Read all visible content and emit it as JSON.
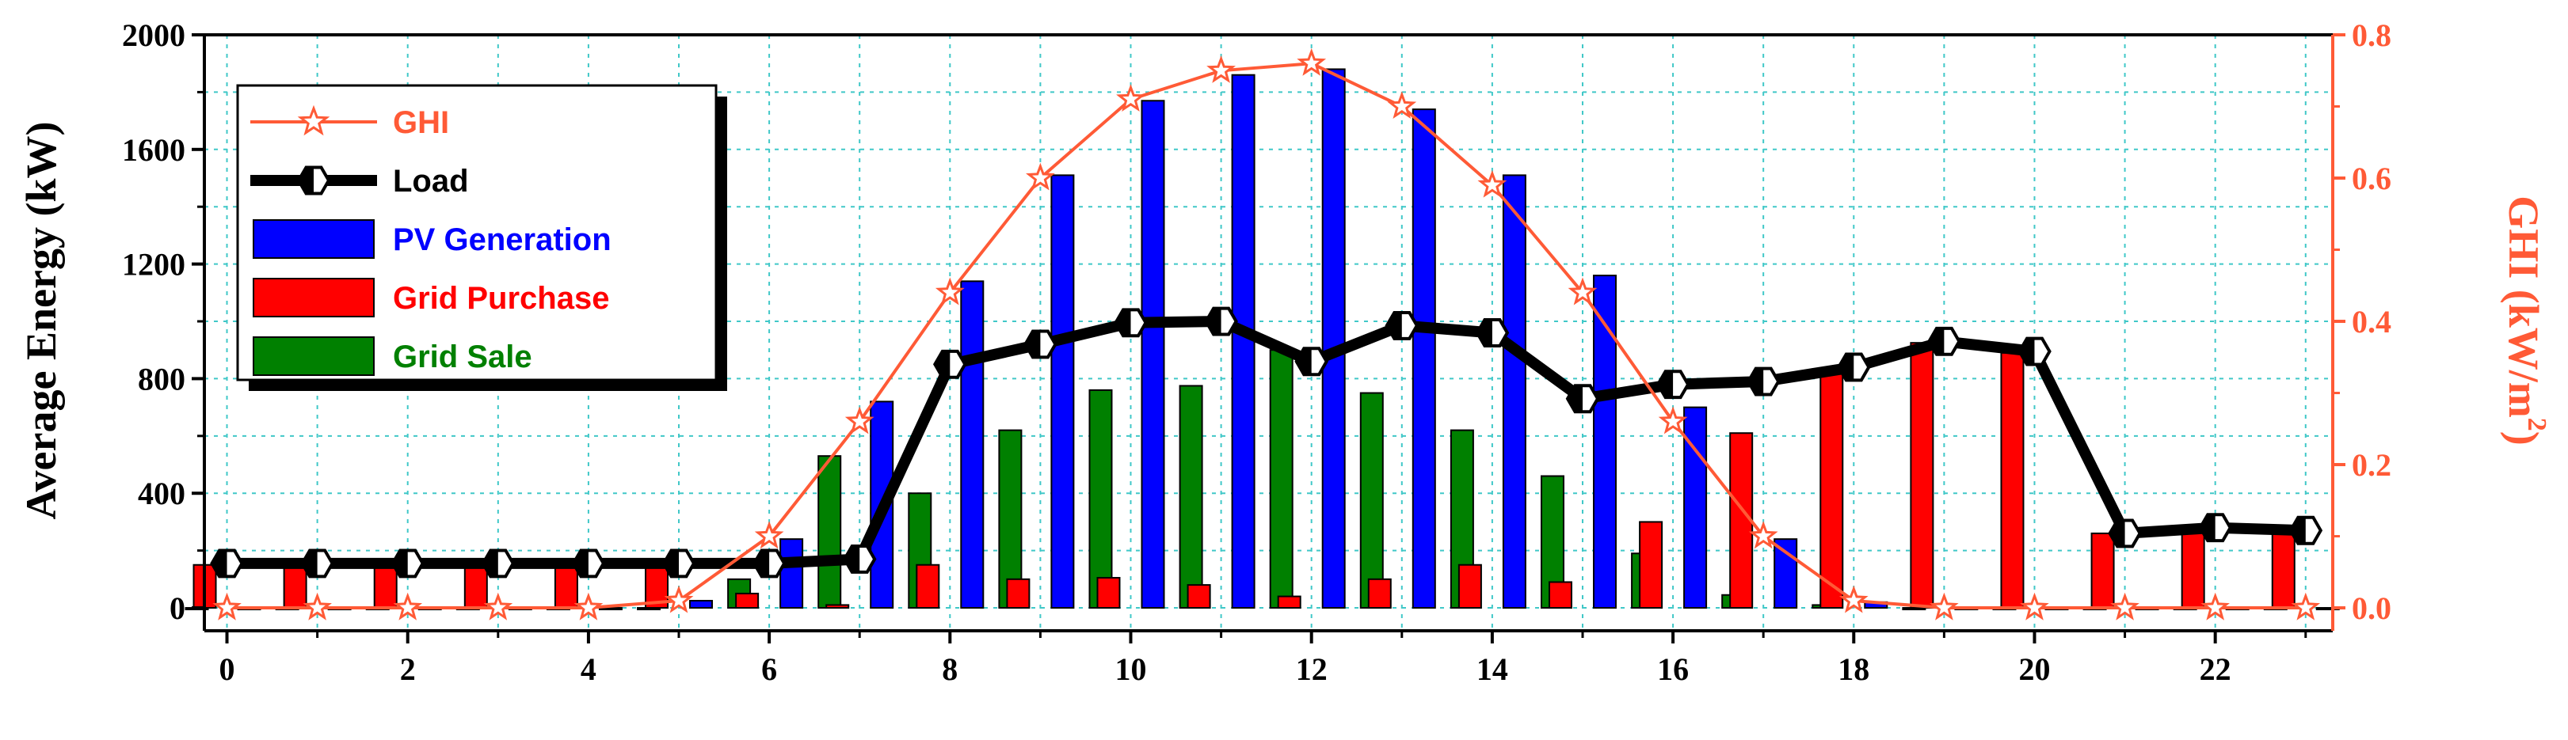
{
  "chart_data": {
    "type": "bar",
    "x": [
      0,
      1,
      2,
      3,
      4,
      5,
      6,
      7,
      8,
      9,
      10,
      11,
      12,
      13,
      14,
      15,
      16,
      17,
      18,
      19,
      20,
      21,
      22,
      23
    ],
    "xticks": [
      "0",
      "2",
      "4",
      "6",
      "8",
      "10",
      "12",
      "14",
      "16",
      "18",
      "20",
      "22"
    ],
    "xlim": [
      -0.25,
      23.3
    ],
    "ylabel": "Average Energy (kW)",
    "ylim": [
      -80,
      2000
    ],
    "yticks": [
      "0",
      "400",
      "800",
      "1200",
      "1600",
      "2000"
    ],
    "y2label_main": "GHI (kW/m",
    "y2label_sup": "2",
    "y2label_close": ")",
    "y2lim": [
      -0.032,
      0.8
    ],
    "y2ticks": [
      "0.0",
      "0.2",
      "0.4",
      "0.6",
      "0.8"
    ],
    "grid": true,
    "legend_position": "top-left",
    "series": [
      {
        "name": "GHI",
        "kind": "line",
        "axis": "right",
        "color": "#ff5a36",
        "marker": "star",
        "values": [
          0,
          0,
          0,
          0,
          0,
          0.01,
          0.1,
          0.26,
          0.44,
          0.6,
          0.71,
          0.75,
          0.76,
          0.7,
          0.59,
          0.44,
          0.26,
          0.1,
          0.01,
          0,
          0,
          0,
          0,
          0
        ]
      },
      {
        "name": "Load",
        "kind": "line",
        "axis": "left",
        "color": "#000000",
        "marker": "hexagon",
        "values": [
          155,
          155,
          155,
          155,
          155,
          155,
          155,
          170,
          850,
          920,
          995,
          1000,
          860,
          985,
          960,
          730,
          780,
          790,
          840,
          930,
          895,
          260,
          280,
          270
        ]
      },
      {
        "name": "PV Generation",
        "kind": "bar",
        "axis": "left",
        "color": "#0000ff",
        "values": [
          0,
          0,
          0,
          0,
          0,
          25,
          240,
          720,
          1140,
          1510,
          1770,
          1860,
          1880,
          1740,
          1510,
          1160,
          700,
          240,
          20,
          0,
          0,
          0,
          0,
          0
        ]
      },
      {
        "name": "Grid Purchase",
        "kind": "bar",
        "axis": "left",
        "color": "#ff0000",
        "values": [
          150,
          150,
          150,
          150,
          150,
          150,
          50,
          10,
          150,
          100,
          105,
          80,
          40,
          100,
          150,
          90,
          300,
          610,
          830,
          925,
          890,
          260,
          280,
          270
        ]
      },
      {
        "name": "Grid Sale",
        "kind": "bar",
        "axis": "left",
        "color": "#008000",
        "values": [
          0,
          0,
          0,
          0,
          0,
          0,
          100,
          530,
          400,
          620,
          760,
          775,
          900,
          750,
          620,
          460,
          190,
          45,
          10,
          0,
          0,
          0,
          0,
          0
        ]
      }
    ],
    "colors": {
      "axis_right": "#ff5a36",
      "grid": "#40c8c8"
    }
  }
}
